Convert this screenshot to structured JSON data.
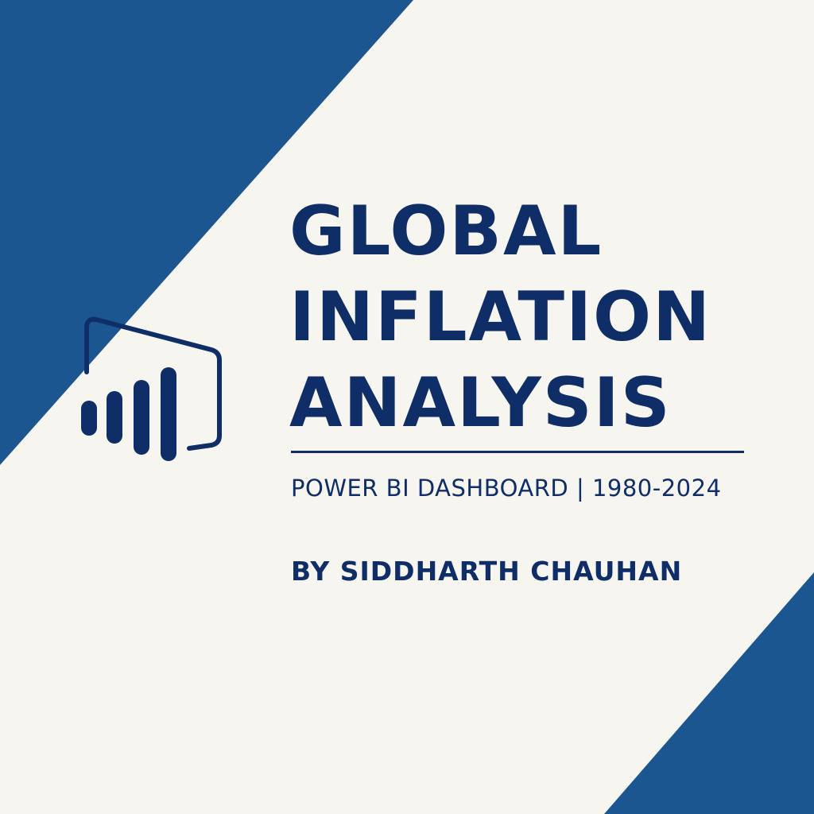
{
  "title_lines": [
    "GLOBAL",
    "INFLATION",
    "ANALYSIS"
  ],
  "subtitle": "POWER BI DASHBOARD | 1980-2024",
  "author": "BY SIDDHARTH CHAUHAN",
  "logo_icon": "power-bi-icon",
  "colors": {
    "background": "#f7f5f0",
    "accent_blue": "#1c5691",
    "text_navy": "#0f2d66"
  }
}
